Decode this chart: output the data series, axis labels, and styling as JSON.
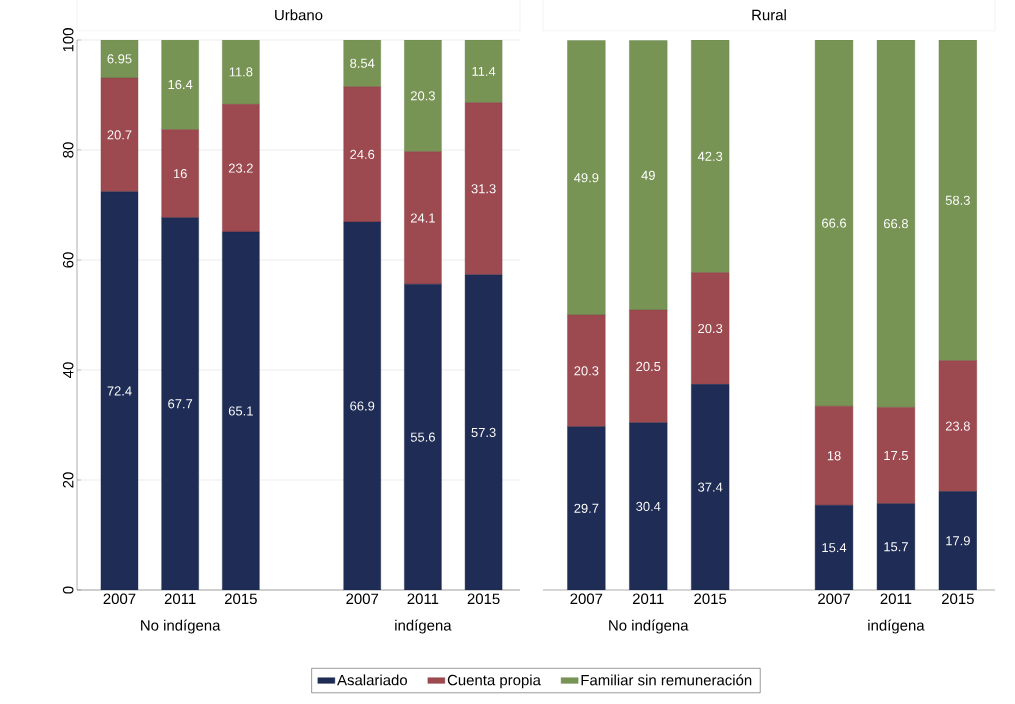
{
  "chart_data": [
    {
      "type": "bar",
      "stacked": true,
      "title": "Urbano",
      "categories": [
        "2007",
        "2011",
        "2015",
        null,
        "2007",
        "2011",
        "2015"
      ],
      "series": [
        {
          "name": "Asalariado",
          "color": "#1f2c55",
          "values": [
            72.4,
            67.7,
            65.1,
            null,
            66.9,
            55.6,
            57.3
          ]
        },
        {
          "name": "Cuenta propia",
          "color": "#9c4a50",
          "values": [
            20.7,
            16,
            23.2,
            null,
            24.6,
            24.1,
            31.3
          ]
        },
        {
          "name": "Familiar sin remuneración",
          "color": "#789455",
          "values": [
            6.95,
            16.4,
            11.8,
            null,
            8.54,
            20.3,
            11.4
          ]
        }
      ],
      "ylim": [
        0,
        100
      ],
      "yticks": [
        0,
        20,
        40,
        60,
        80,
        100
      ],
      "grid": "y",
      "data_labels": true,
      "legend": "bottom",
      "annotations": [
        "No indígena",
        "indígena"
      ]
    },
    {
      "type": "bar",
      "stacked": true,
      "title": "Rural",
      "categories": [
        "2007",
        "2011",
        "2015",
        null,
        "2007",
        "2011",
        "2015"
      ],
      "series": [
        {
          "color": "#1f2c55",
          "values": [
            29.7,
            30.4,
            37.4,
            null,
            15.4,
            15.7,
            17.9
          ]
        },
        {
          "color": "#9c4a50",
          "values": [
            20.3,
            20.5,
            20.3,
            null,
            18,
            17.5,
            23.8
          ]
        },
        {
          "color": "#789455",
          "values": [
            49.9,
            49,
            42.3,
            null,
            66.6,
            66.8,
            58.3
          ]
        }
      ],
      "ylim": [
        0,
        100
      ],
      "yticks": [
        0,
        20,
        40,
        60,
        80,
        100
      ],
      "grid": "y",
      "data_labels": true,
      "tick_labels": "x",
      "annotations": [
        "No indígena",
        "indígena"
      ]
    }
  ]
}
